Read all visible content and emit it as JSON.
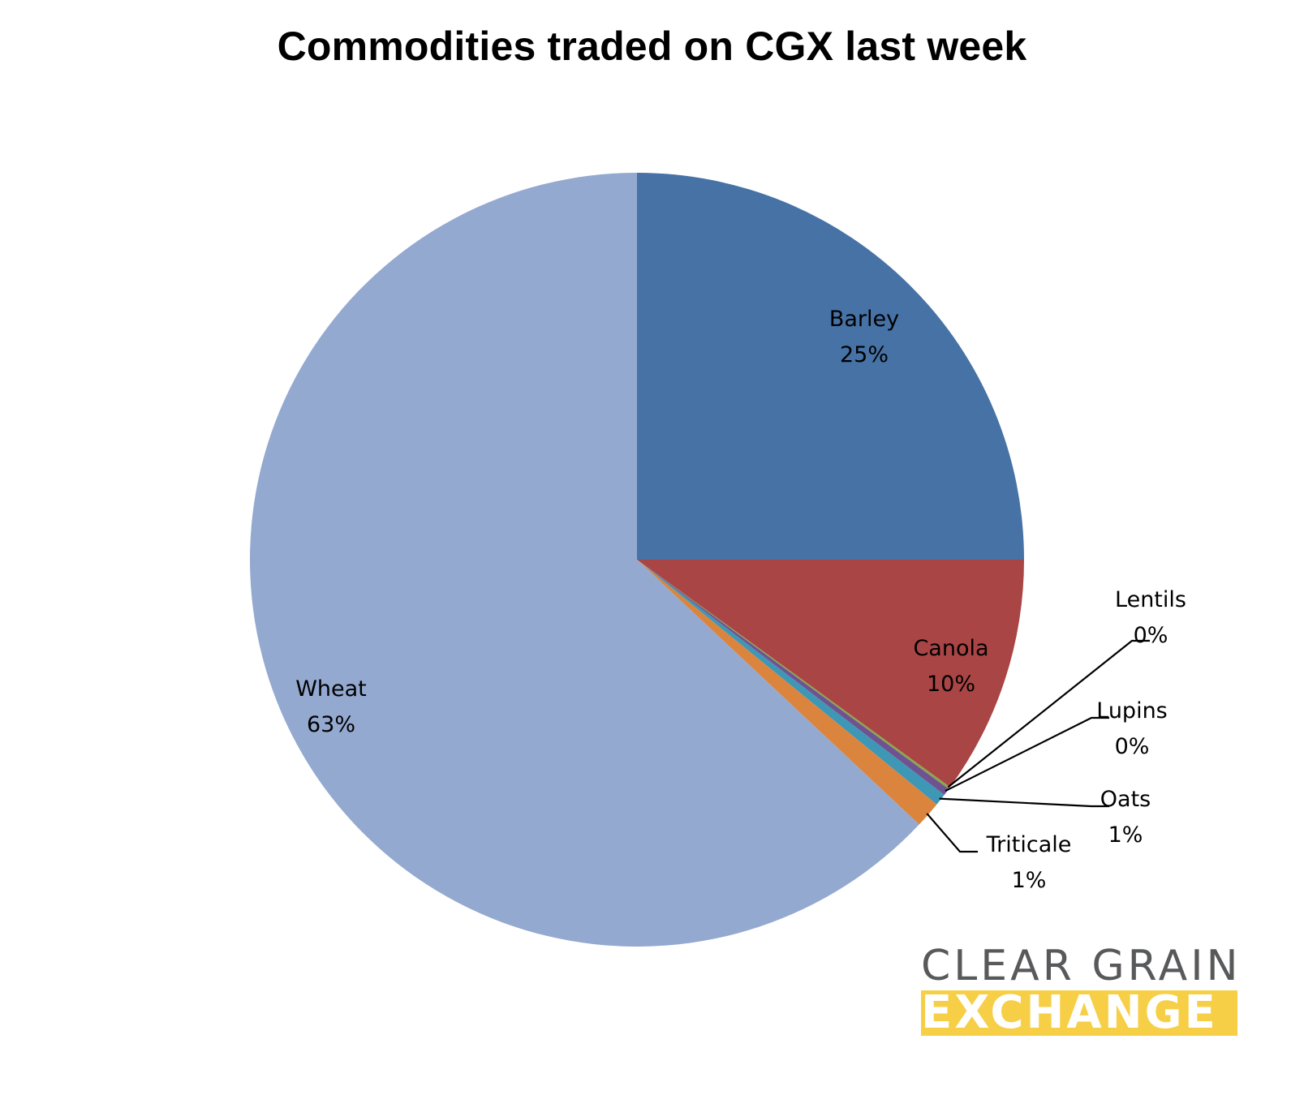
{
  "chart_data": {
    "type": "pie",
    "title": "Commodities traded on CGX last week",
    "categories": [
      "Barley",
      "Canola",
      "Lentils",
      "Lupins",
      "Oats",
      "Triticale",
      "Wheat"
    ],
    "values": [
      25,
      10,
      0.1,
      0.3,
      0.5,
      1.1,
      63
    ],
    "labels": [
      "25%",
      "10%",
      "0%",
      "0%",
      "1%",
      "1%",
      "63%"
    ],
    "colors": [
      "#4672a6",
      "#a94544",
      "#8aa84b",
      "#6f5391",
      "#3e97b4",
      "#db843d",
      "#94a9d0"
    ],
    "start_angle": "12 o'clock",
    "direction": "clockwise",
    "legend": "none"
  },
  "logo": {
    "line1": "CLEAR GRAIN",
    "line2": "EXCHANGE"
  }
}
